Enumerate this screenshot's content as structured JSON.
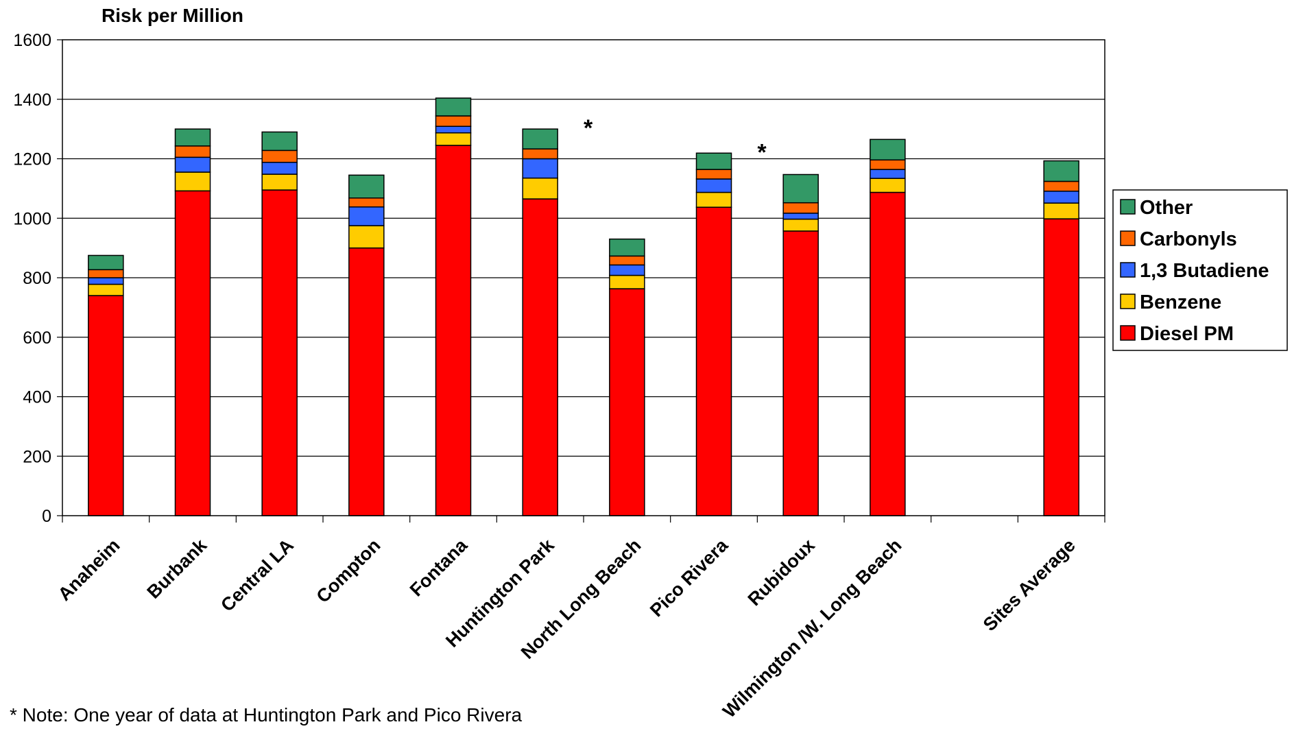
{
  "chart_data": {
    "type": "bar",
    "stacked": true,
    "title": "",
    "ylabel": "Risk per Million",
    "xlabel": "",
    "ylim": [
      0,
      1600
    ],
    "yticks": [
      0,
      200,
      400,
      600,
      800,
      1000,
      1200,
      1400,
      1600
    ],
    "grid": true,
    "legend_position": "right",
    "categories": [
      "Anaheim",
      "Burbank",
      "Central LA",
      "Compton",
      "Fontana",
      "Huntington Park",
      "North Long Beach",
      "Pico Rivera",
      "Rubidoux",
      "Wilmington /W. Long Beach",
      "",
      "Sites Average"
    ],
    "series": [
      {
        "name": "Diesel PM",
        "color": "#ff0000",
        "values": [
          740,
          1092,
          1095,
          900,
          1245,
          1065,
          763,
          1037,
          957,
          1087,
          null,
          998
        ]
      },
      {
        "name": "Benzene",
        "color": "#ffcc00",
        "values": [
          38,
          63,
          53,
          75,
          42,
          70,
          45,
          50,
          40,
          47,
          null,
          53
        ]
      },
      {
        "name": "1,3 Butadiene",
        "color": "#3366ff",
        "values": [
          22,
          50,
          40,
          63,
          22,
          65,
          35,
          45,
          20,
          30,
          null,
          40
        ]
      },
      {
        "name": "Carbonyls",
        "color": "#ff6600",
        "values": [
          27,
          38,
          40,
          30,
          35,
          33,
          30,
          32,
          35,
          32,
          null,
          33
        ]
      },
      {
        "name": "Other",
        "color": "#339966",
        "values": [
          48,
          57,
          62,
          77,
          60,
          67,
          57,
          55,
          95,
          69,
          null,
          69
        ]
      }
    ],
    "annotations": [
      {
        "text": "*",
        "after_category": "Huntington Park"
      },
      {
        "text": "*",
        "after_category": "Pico Rivera"
      }
    ],
    "note": "* Note: One year of data at Huntington Park and Pico Rivera"
  }
}
